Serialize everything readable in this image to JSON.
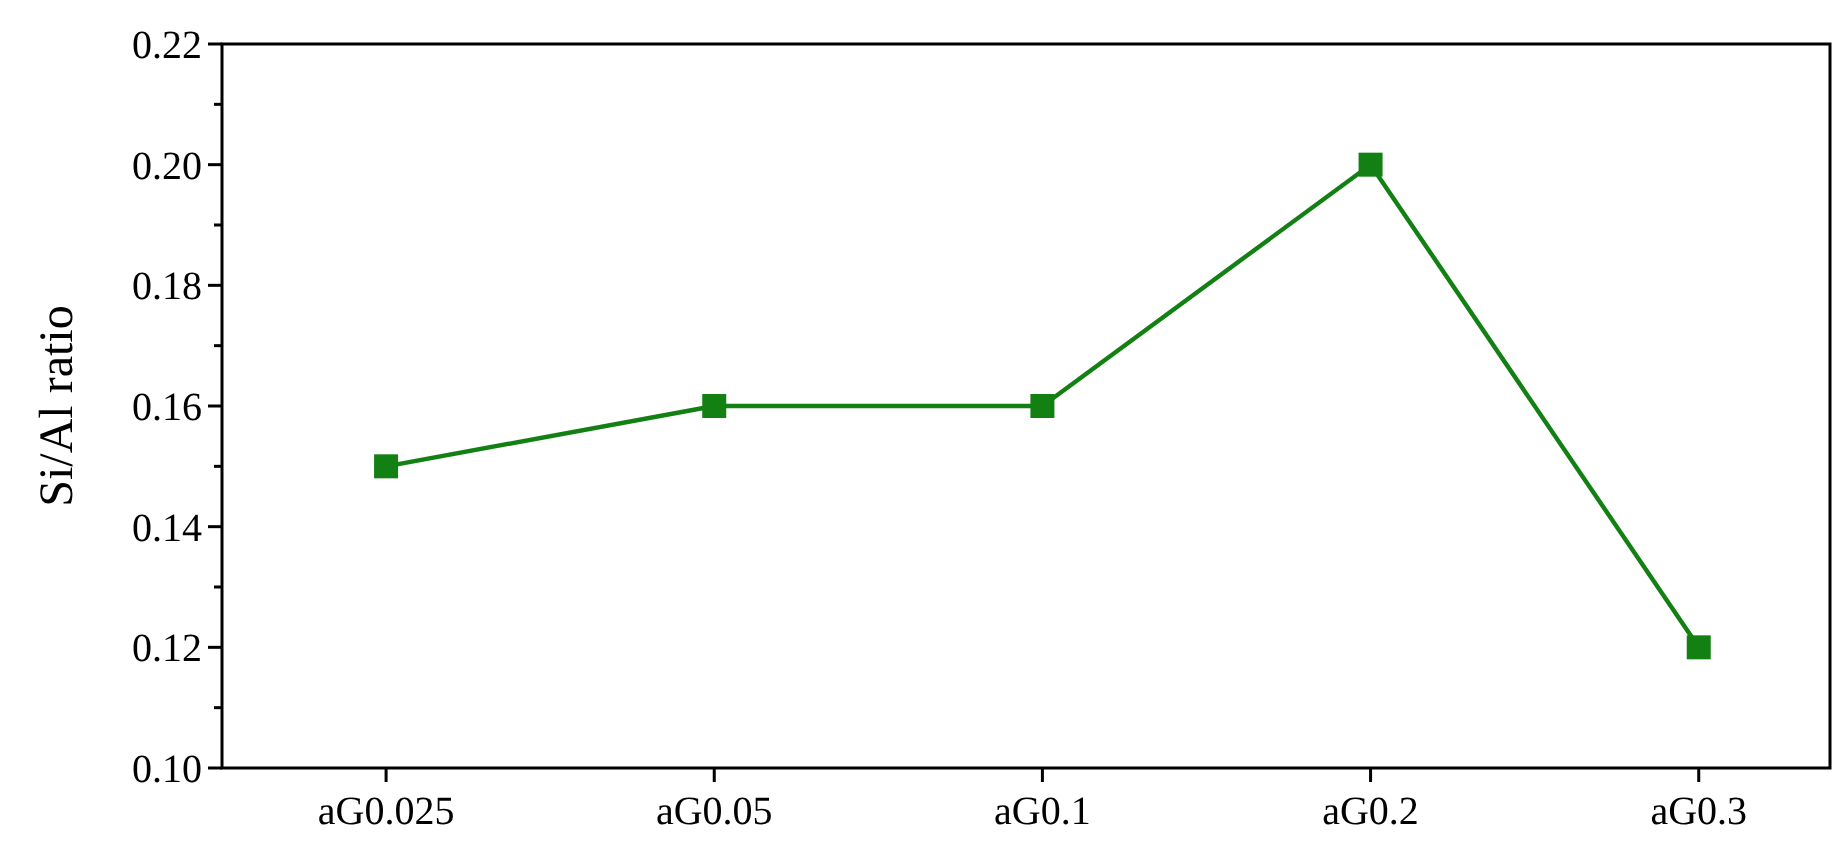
{
  "chart_data": {
    "type": "line",
    "ylabel": "Si/Al ratio",
    "categories": [
      "aG0.025",
      "aG0.05",
      "aG0.1",
      "aG0.2",
      "aG0.3"
    ],
    "series": [
      {
        "color": "#138013",
        "values": [
          0.15,
          0.16,
          0.16,
          0.2,
          0.12
        ]
      }
    ],
    "ylim": [
      0.1,
      0.22
    ],
    "yticks": [
      {
        "value": 0.1,
        "label": "0.10"
      },
      {
        "value": 0.11,
        "label": null
      },
      {
        "value": 0.12,
        "label": "0.12"
      },
      {
        "value": 0.13,
        "label": null
      },
      {
        "value": 0.14,
        "label": "0.14"
      },
      {
        "value": 0.15,
        "label": null
      },
      {
        "value": 0.16,
        "label": "0.16"
      },
      {
        "value": 0.17,
        "label": null
      },
      {
        "value": 0.18,
        "label": "0.18"
      },
      {
        "value": 0.19,
        "label": null
      },
      {
        "value": 0.2,
        "label": "0.20"
      },
      {
        "value": 0.21,
        "label": null
      },
      {
        "value": 0.22,
        "label": "0.22"
      }
    ],
    "grid": false,
    "marker": "square",
    "line_style": "solid"
  }
}
